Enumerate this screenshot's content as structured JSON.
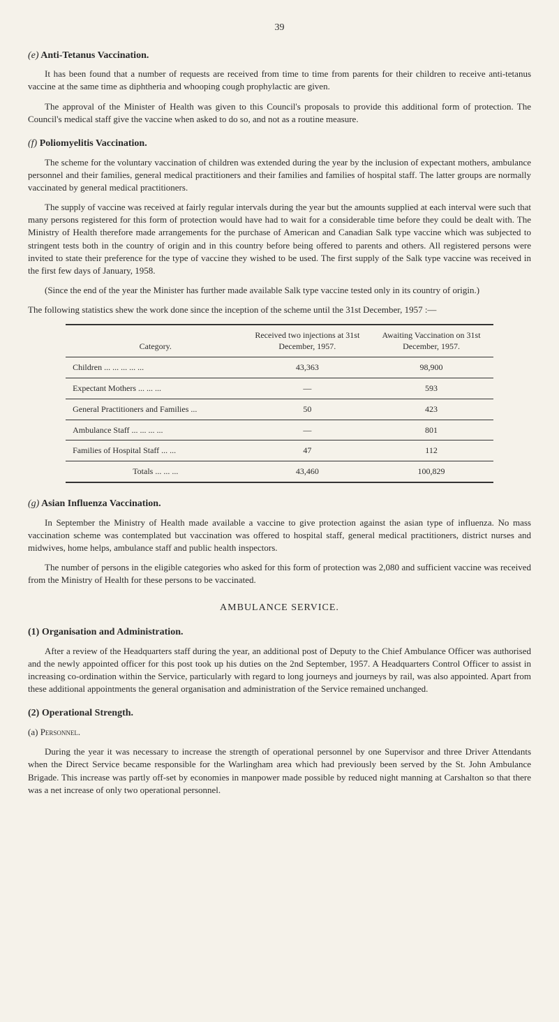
{
  "page_number": "39",
  "sections": {
    "e": {
      "letter": "(e)",
      "title": "Anti-Tetanus Vaccination.",
      "p1": "It has been found that a number of requests are received from time to time from parents for their children to receive anti-tetanus vaccine at the same time as diphtheria and whooping cough prophylactic are given.",
      "p2": "The approval of the Minister of Health was given to this Council's proposals to provide this additional form of protection. The Council's medical staff give the vaccine when asked to do so, and not as a routine measure."
    },
    "f": {
      "letter": "(f)",
      "title": "Poliomyelitis Vaccination.",
      "p1": "The scheme for the voluntary vaccination of children was extended during the year by the inclusion of expectant mothers, ambulance personnel and their families, general medical practitioners and their families and families of hospital staff. The latter groups are normally vaccinated by general medical practitioners.",
      "p2": "The supply of vaccine was received at fairly regular intervals during the year but the amounts supplied at each interval were such that many persons registered for this form of protection would have had to wait for a considerable time before they could be dealt with. The Ministry of Health therefore made arrangements for the purchase of American and Canadian Salk type vaccine which was subjected to stringent tests both in the country of origin and in this country before being offered to parents and others. All registered persons were invited to state their preference for the type of vaccine they wished to be used. The first supply of the Salk type vaccine was received in the first few days of January, 1958.",
      "p3": "(Since the end of the year the Minister has further made available Salk type vaccine tested only in its country of origin.)",
      "p4": "The following statistics shew the work done since the inception of the scheme until the 31st December, 1957 :—"
    },
    "g": {
      "letter": "(g)",
      "title": "Asian Influenza Vaccination.",
      "p1": "In September the Ministry of Health made available a vaccine to give protection against the asian type of influenza. No mass vaccination scheme was contemplated but vaccination was offered to hospital staff, general medical practitioners, district nurses and midwives, home helps, ambulance staff and public health inspectors.",
      "p2": "The number of persons in the eligible categories who asked for this form of protection was 2,080 and sufficient vaccine was received from the Ministry of Health for these persons to be vaccinated."
    },
    "ambulance": {
      "heading": "AMBULANCE SERVICE.",
      "s1": {
        "num": "(1)",
        "title": "Organisation and Administration.",
        "p1": "After a review of the Headquarters staff during the year, an additional post of Deputy to the Chief Ambulance Officer was authorised and the newly appointed officer for this post took up his duties on the 2nd September, 1957. A Headquarters Control Officer to assist in increasing co-ordination within the Service, particularly with regard to long journeys and journeys by rail, was also appointed. Apart from these additional appointments the general organisation and administration of the Service remained unchanged."
      },
      "s2": {
        "num": "(2)",
        "title": "Operational Strength.",
        "sub_a_letter": "(a)",
        "sub_a_title": "Personnel.",
        "p1": "During the year it was necessary to increase the strength of operational personnel by one Supervisor and three Driver Attendants when the Direct Service became responsible for the Warlingham area which had previously been served by the St. John Ambulance Brigade. This increase was partly off-set by economies in manpower made possible by reduced night manning at Carshalton so that there was a net increase of only two operational personnel."
      }
    }
  },
  "table": {
    "headers": {
      "h1": "Category.",
      "h2": "Received two injections at 31st December, 1957.",
      "h3": "Awaiting Vaccination on 31st December, 1957."
    },
    "rows": [
      {
        "cat": "Children     ...     ...     ...     ...     ...",
        "c2": "43,363",
        "c3": "98,900"
      },
      {
        "cat": "Expectant Mothers          ...     ...     ...",
        "c2": "—",
        "c3": "593"
      },
      {
        "cat": "General Practitioners and Families    ...",
        "c2": "50",
        "c3": "423"
      },
      {
        "cat": "Ambulance Staff ...     ...     ...     ...",
        "c2": "—",
        "c3": "801"
      },
      {
        "cat": "Families of Hospital Staff         ...     ...",
        "c2": "47",
        "c3": "112"
      }
    ],
    "totals": {
      "label": "Totals        ...     ...     ...",
      "c2": "43,460",
      "c3": "100,829"
    }
  }
}
